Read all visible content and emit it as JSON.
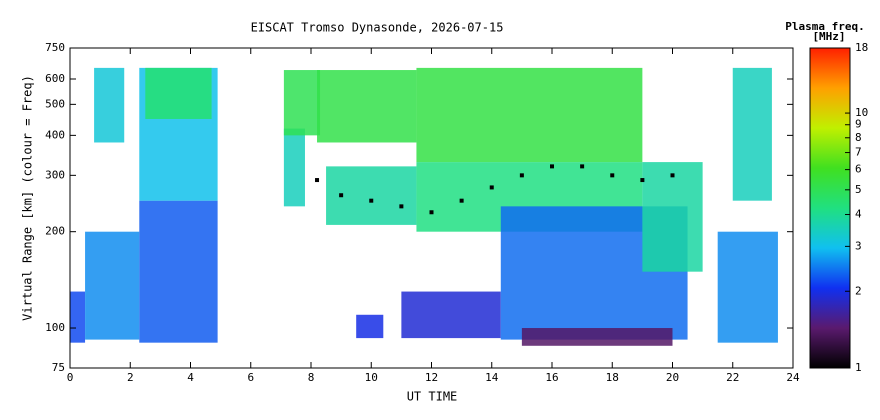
{
  "chart_data": {
    "type": "heatmap",
    "title": "EISCAT Tromso Dynasonde, 2026-07-15",
    "x_label": "UT TIME",
    "y_label": "Virtual Range [km] (colour = Freq)",
    "colorbar_label": [
      "Plasma freq.",
      "[MHz]"
    ],
    "xlim": [
      0,
      24
    ],
    "xticks": [
      0,
      2,
      4,
      6,
      8,
      10,
      12,
      14,
      16,
      18,
      20,
      22,
      24
    ],
    "ylim": [
      75,
      750
    ],
    "yticks": [
      75,
      100,
      200,
      300,
      400,
      500,
      600,
      750
    ],
    "ylog": true,
    "clim": [
      1,
      18
    ],
    "cticks": [
      1,
      2,
      3,
      4,
      5,
      6,
      7,
      8,
      9,
      10,
      18
    ],
    "clog": true,
    "colormap": [
      "#000000",
      "#5a1a6e",
      "#1030f0",
      "#10c0f0",
      "#20e080",
      "#40e020",
      "#c0f000",
      "#ffa000",
      "#ff2000"
    ],
    "blocks": [
      {
        "t": [
          0,
          0.5
        ],
        "range": [
          90,
          130
        ],
        "freq": 2.2
      },
      {
        "t": [
          0.5,
          2.3
        ],
        "range": [
          92,
          200
        ],
        "freq": 2.6
      },
      {
        "t": [
          0.8,
          1.8
        ],
        "range": [
          380,
          650
        ],
        "freq": 3.2
      },
      {
        "t": [
          2.3,
          4.9
        ],
        "range": [
          90,
          250
        ],
        "freq": 2.3
      },
      {
        "t": [
          2.3,
          4.9
        ],
        "range": [
          250,
          650
        ],
        "freq": 3
      },
      {
        "t": [
          2.5,
          4.7
        ],
        "range": [
          450,
          650
        ],
        "freq": 4.5
      },
      {
        "t": [
          7.1,
          7.8
        ],
        "range": [
          240,
          420
        ],
        "freq": 3.5
      },
      {
        "t": [
          7.1,
          8.3
        ],
        "range": [
          400,
          640
        ],
        "freq": 5
      },
      {
        "t": [
          8.2,
          11.5
        ],
        "range": [
          380,
          640
        ],
        "freq": 5.2
      },
      {
        "t": [
          8.5,
          11.5
        ],
        "range": [
          210,
          320
        ],
        "freq": 3.8
      },
      {
        "t": [
          9.5,
          10.4
        ],
        "range": [
          93,
          110
        ],
        "freq": 2
      },
      {
        "t": [
          11,
          14.3
        ],
        "range": [
          93,
          130
        ],
        "freq": 1.9
      },
      {
        "t": [
          11.5,
          19
        ],
        "range": [
          330,
          650
        ],
        "freq": 5.3
      },
      {
        "t": [
          11.5,
          19
        ],
        "range": [
          200,
          330
        ],
        "freq": 4.2
      },
      {
        "t": [
          14.3,
          20.5
        ],
        "range": [
          92,
          240
        ],
        "freq": 2.4
      },
      {
        "t": [
          15,
          20
        ],
        "range": [
          88,
          100
        ],
        "freq": 1.4
      },
      {
        "t": [
          19,
          21
        ],
        "range": [
          150,
          330
        ],
        "freq": 3.8
      },
      {
        "t": [
          21.5,
          23.5
        ],
        "range": [
          90,
          200
        ],
        "freq": 2.6
      },
      {
        "t": [
          22,
          23.3
        ],
        "range": [
          250,
          650
        ],
        "freq": 3.5
      }
    ],
    "trace": {
      "x": [
        8.2,
        9,
        10,
        11,
        12,
        13,
        14,
        15,
        16,
        17,
        18,
        19,
        20
      ],
      "y": [
        290,
        260,
        250,
        240,
        230,
        250,
        275,
        300,
        320,
        320,
        300,
        290,
        300
      ]
    }
  }
}
